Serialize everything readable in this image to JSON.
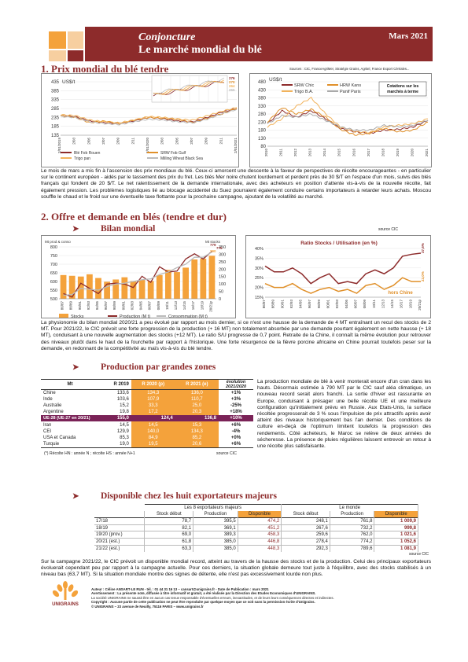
{
  "header": {
    "title1": "Conjoncture",
    "title2": "Le marché mondial du blé",
    "date": "Mars 2021"
  },
  "section1": {
    "title": "1. Prix mondial du blé tendre",
    "sources": "Sources : CIC, FranceAgriMer, Stratégie Grains, Agritel, France Export Céréales...",
    "paragraph": "Le mois de mars a mis fin à l'ascension des prix mondiaux du blé. Ceux-ci amorcent une descente à la faveur de perspectives de récolte encourageantes - en particulier sur le continent européen - aidés par le tassement des prix du fret. Les blés Mer noire chutent lourdement et perdent près de 30 $/T en l'espace d'un mois, suivis des blés français qui fondent de 20 $/T. Le net ralentissement de la demande internationale, avec des acheteurs en position d'attente vis-à-vis de la nouvelle récolte, fait également pression. Les problèmes logistiques lié au blocage accidentel du Suez pourraient également conduire certains importateurs à retarder leurs achats. Moscou souffle le chaud et le froid sur une éventuelle taxe flottante pour la prochaine campagne, ajoutant de la volatilité au marché."
  },
  "chart_data": [
    {
      "type": "line",
      "unit": "US$/t",
      "ylim": [
        135,
        435
      ],
      "yticks": [
        135,
        185,
        235,
        285,
        335,
        385,
        435
      ],
      "x": [
        "2/01/2019",
        "2/03",
        "2/05",
        "2/07",
        "2/09",
        "2/11",
        "2/01/2020",
        "2/03",
        "2/05",
        "2/07",
        "2/09",
        "2/11",
        "2/01/2021"
      ],
      "series": [
        {
          "name": "Blé Fob Rouen",
          "color": "#8d2b2b",
          "values": [
            245,
            240,
            215,
            205,
            200,
            215,
            235,
            228,
            215,
            210,
            235,
            265,
            285
          ]
        },
        {
          "name": "SRW Fob Gulf",
          "color": "#e0902a",
          "values": [
            245,
            235,
            205,
            215,
            200,
            220,
            235,
            230,
            225,
            205,
            230,
            255,
            285
          ]
        },
        {
          "name": "Trigo pan",
          "color": "#f2b35c",
          "values": [
            250,
            245,
            220,
            210,
            205,
            220,
            240,
            235,
            225,
            220,
            245,
            270,
            290
          ]
        },
        {
          "name": "Milling Wheat Black Sea",
          "color": "#bbbbbb",
          "values": [
            240,
            235,
            210,
            200,
            195,
            210,
            225,
            220,
            210,
            205,
            225,
            255,
            280
          ]
        }
      ],
      "inset_labels": [
        "276",
        "270",
        "264",
        "255"
      ]
    },
    {
      "type": "line",
      "unit": "US$/t",
      "ylim": [
        80,
        480
      ],
      "yticks": [
        80,
        130,
        180,
        230,
        280,
        330,
        380,
        430,
        480
      ],
      "title": "Cotations sur les marchés à terme",
      "x": [
        "2010",
        "2011",
        "2012",
        "2013",
        "2014",
        "2015",
        "2016",
        "2017",
        "2018",
        "2019",
        "2020",
        "2021"
      ],
      "series": [
        {
          "name": "SRW Chic",
          "color": "#8d2b2b",
          "values": [
            220,
            300,
            260,
            300,
            250,
            190,
            170,
            160,
            180,
            185,
            200,
            240
          ]
        },
        {
          "name": "HRW Kans",
          "color": "#e0902a",
          "values": [
            230,
            320,
            280,
            310,
            260,
            185,
            150,
            160,
            190,
            170,
            180,
            230
          ]
        },
        {
          "name": "Trigo B.A.",
          "color": "#f2b35c",
          "values": [
            200,
            250,
            330,
            380,
            280,
            200,
            170,
            165,
            200,
            210,
            220,
            250
          ]
        },
        {
          "name": "Panif Paris",
          "color": "#aaaaaa",
          "values": [
            220,
            270,
            260,
            280,
            240,
            200,
            180,
            180,
            210,
            200,
            210,
            240
          ]
        }
      ]
    },
    {
      "type": "bar",
      "title": "Bilan mondial",
      "ylabel_left": "Mt prod & conso",
      "ylabel_right": "Mt stocks",
      "ylim_left": [
        500,
        800
      ],
      "ylim_right": [
        0,
        350
      ],
      "categories": [
        "86/87",
        "88/89",
        "90/91",
        "92/93",
        "94/95",
        "96/97",
        "98/99",
        "00/01",
        "02/03",
        "04/05",
        "06/07",
        "08/09",
        "10/11",
        "12/13",
        "14/15",
        "16/17",
        "18/19",
        "20/21p"
      ],
      "series": [
        {
          "name": "Stocks",
          "color": "#f4a23b",
          "values": [
            160,
            155,
            150,
            165,
            140,
            115,
            130,
            145,
            120,
            130,
            120,
            160,
            195,
            180,
            210,
            265,
            270,
            290
          ]
        },
        {
          "name": "Production (M t)",
          "color": "#8d2b2b",
          "values": [
            530,
            510,
            590,
            560,
            530,
            585,
            590,
            585,
            565,
            630,
            595,
            685,
            655,
            660,
            730,
            760,
            730,
            775
          ]
        },
        {
          "name": "Consommation (M t)",
          "color": "#bbbbbb",
          "values": [
            520,
            525,
            560,
            555,
            550,
            570,
            585,
            590,
            600,
            610,
            615,
            640,
            655,
            680,
            700,
            740,
            740,
            770
          ]
        }
      ],
      "annotations": [
        "779",
        "775",
        "290"
      ]
    },
    {
      "type": "line",
      "title": "Ratio Stocks / Utilisation (en %)",
      "ylim": [
        15,
        40
      ],
      "yticks": [
        "15%",
        "20%",
        "25%",
        "30%",
        "35%",
        "40%"
      ],
      "categories": [
        "86/87",
        "88/89",
        "90/91",
        "92/93",
        "94/95",
        "96/97",
        "98/99",
        "00/01",
        "02/03",
        "04/05",
        "06/07",
        "08/09",
        "10/11",
        "12/13",
        "14/15",
        "16/17",
        "18/19",
        "20/21p"
      ],
      "series": [
        {
          "name": "monde",
          "color": "#8d2b2b",
          "values": [
            31,
            28,
            28,
            30,
            27,
            22,
            25,
            27,
            22,
            23,
            22,
            27,
            29,
            27,
            30,
            36,
            37,
            37.6
          ]
        },
        {
          "name": "hors Chine",
          "color": "#e0902a",
          "values": [
            22,
            20,
            20,
            22,
            19,
            17,
            19,
            20,
            18,
            19,
            17,
            21,
            22,
            19,
            21,
            25,
            23,
            23.0
          ]
        }
      ],
      "annotations": [
        "37,6%",
        "23,0%",
        "hors Chine"
      ]
    }
  ],
  "section2": {
    "title": "2. Offre et demande en blés (tendre et dur)",
    "bilan_title": "Bilan mondial",
    "source_label": "source CIC",
    "paragraph": "La physionomie du bilan mondial 2020/21 a peu évolué par rapport au mois dernier, si ce n'est une hausse de la demande de 4 MT entraînant un recul des stocks de 2 MT. Pour 2021/22, le CIC prévoit une forte progression de la production (+ 16 MT) non totalement absorbée par une demande pourtant également en nette hausse (+ 18 MT), conduisant à une nouvelle augmentation des stocks (+12 MT). Le ratio S/U progresse de 0,7 point. Retraite de la Chine, il connaît la même évolution pour retrouver des niveaux plutôt dans le haut de la fourchette par rapport à l'historique. Une forte résurgence de la fièvre porcine africaine en Chine pourrait toutefois peser sur la demande, en redonnant de la compétitivité au maïs vis-à-vis du blé tendre."
  },
  "zones": {
    "title": "Production par grandes zones",
    "headers": [
      "Mt",
      "R 2019",
      "R 2020 (p)",
      "R 2021 (e)",
      "évolution 2021/2020"
    ],
    "rows": [
      [
        "Chine",
        "133,6",
        "134,3",
        "136,0",
        "+1%"
      ],
      [
        "Inde",
        "103,6",
        "107,9",
        "110,7",
        "+3%"
      ],
      [
        "Australie",
        "15,2",
        "33,3",
        "25,0",
        "-25%"
      ],
      [
        "Argentine",
        "19,8",
        "17,2",
        "20,3",
        "+18%"
      ],
      [
        "UE-28 (UE-27 en 20/21)",
        "155,0",
        "124,4",
        "136,8",
        "+10%"
      ],
      [
        "Iran",
        "14,5",
        "14,5",
        "15,3",
        "+6%"
      ],
      [
        "CEI",
        "129,9",
        "140,0",
        "134,3",
        "-4%"
      ],
      [
        "USA et Canada",
        "85,3",
        "84,9",
        "85,2",
        "+0%"
      ],
      [
        "Turquie",
        "19,0",
        "19,5",
        "20,6",
        "+6%"
      ]
    ],
    "footnote": "(*) Récolte HN : année N ; récolte HS : année N+1",
    "source": "source CIC",
    "paragraph": "La production mondiale de blé à venir monterait encore d'un cran dans les hauts. Désormais estimée à 790 MT par le CIC sauf aléa climatique, un nouveau record serait alors franchi. La sortie d'hiver est rassurante en Europe, conduisant à présager une belle récolte UE et une meilleure configuration qu'initialement prévu en Russie. Aux Etats-Unis, la surface récoltée progresserait de 3 % sous l'impulsion de prix attractifs après avoir atteint des niveaux historiquement bas l'an dernier. Des conditions de culture en-deçà de l'optimum limitent toutefois la progression des rendements. Côté acheteurs, le Maroc se relève de deux années de sécheresse. La présence de pluies régulières laissent entrevoir un retour à une récolte plus satisfaisante."
  },
  "exporters": {
    "title": "Disponible chez les huit exportateurs majeurs",
    "group1": "Les 8 exportateurs majeurs",
    "group2": "Le monde",
    "headers": [
      "",
      "Stock début",
      "Production",
      "Disponible",
      "Stock début",
      "Production",
      "Disponible"
    ],
    "rows": [
      [
        "17/18",
        "78,7",
        "395,5",
        "474,2",
        "248,1",
        "761,8",
        "1 009,9"
      ],
      [
        "18/19",
        "82,1",
        "369,1",
        "451,2",
        "267,6",
        "732,2",
        "999,8"
      ],
      [
        "19/20 (prov.)",
        "69,0",
        "389,3",
        "458,3",
        "259,6",
        "762,0",
        "1 021,6"
      ],
      [
        "20/21 (est.)",
        "61,8",
        "385,0",
        "446,8",
        "278,4",
        "774,2",
        "1 052,6"
      ],
      [
        "21/22 (est.)",
        "63,3",
        "385,0",
        "448,3",
        "292,3",
        "789,6",
        "1 081,9"
      ]
    ],
    "source": "source CIC",
    "paragraph": "Sur la campagne 2021/22, le CIC prévoit un disponible mondial record, atteint au travers de la hausse des stocks et de la production. Celui des principaux exportateurs évoluerait cependant peu par rapport à la campagne actuelle. Pour ces derniers, la situation globale demeure tout juste à l'équilibre, avec des stocks stabilisés à un niveau bas (63,7 MT). Si la situation mondiale montre des signes de détente, elle n'est pas excessivement lourde non plus."
  },
  "footer": {
    "logo_text": "UNIGRAINS",
    "line1": "Auteur : Céline ANSART-LE RUN - tél. : 01 44 31 16 13 – cansart@unigrains.fr - Date de Publication : mars 2021",
    "line2": "Avertissement : La présente note, diffusée à titre informatif et gratuit, a été réalisée par la Direction des Etudes Economiques d'UNIGRAINS.",
    "line3": "La société UNIGRAINS ne saurait être en aucun cas tenue responsable d'éventuelles erreurs, inexactitudes, et de leurs leurs conséquences directes et indirectes.",
    "line4": "Copyright : Aucune partie de cette publication ne peut être reproduite par quelque moyen que ce soit sans la permission écrite d'Unigrains.",
    "line5": "© UNIGRAINS – 23 avenue de Neuilly, 75116 PARIS – www.unigrains.fr"
  }
}
